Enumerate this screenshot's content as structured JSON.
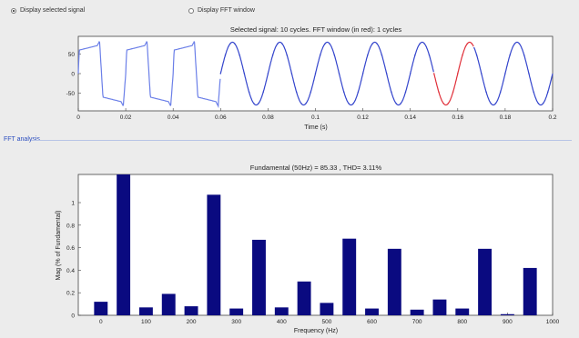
{
  "controls": {
    "radio_selected_signal": "Display selected signal",
    "radio_fft_window": "Display FFT window",
    "selected": "radio_selected_signal"
  },
  "panel": {
    "fft_label": "FFT analysis"
  },
  "signal_plot": {
    "title": "Selected signal: 10 cycles. FFT window (in red): 1 cycles",
    "xlabel": "Time (s)",
    "xticks": [
      "0",
      "0.02",
      "0.04",
      "0.06",
      "0.08",
      "0.1",
      "0.12",
      "0.14",
      "0.16",
      "0.18",
      "0.2"
    ],
    "yticks": [
      "50",
      "0",
      "-50"
    ],
    "xlim": [
      0,
      0.2
    ],
    "ylim": [
      -95,
      95
    ],
    "colors": {
      "signal": "#6b7fe8",
      "sine": "#3344cc",
      "fft_window": "#e0303a"
    }
  },
  "chart_data": [
    {
      "type": "line",
      "title": "Selected signal: 10 cycles. FFT window (in red): 1 cycles",
      "xlabel": "Time (s)",
      "ylabel": "",
      "xlim": [
        0,
        0.2
      ],
      "ylim": [
        -95,
        95
      ],
      "series": [
        {
          "x": [
            0,
            0.001,
            0.003,
            0.006,
            0.0085,
            0.0095,
            0.011,
            0.013,
            0.016,
            0.0185,
            0.0195
          ],
          "values": [
            0,
            60,
            68,
            72,
            80,
            60,
            -60,
            -68,
            -72,
            -80,
            -60
          ]
        }
      ],
      "fft_window": [
        0.15,
        0.1667
      ],
      "grid": false
    },
    {
      "type": "bar",
      "title": "Fundamental (50Hz) = 85.33 , THD= 3.11%",
      "xlabel": "Frequency (Hz)",
      "ylabel": "Mag (% of Fundamental)",
      "xlim": [
        -50,
        1000
      ],
      "ylim": [
        0,
        1.25
      ],
      "x": [
        0,
        50,
        100,
        150,
        200,
        250,
        300,
        350,
        400,
        450,
        500,
        550,
        600,
        650,
        700,
        750,
        800,
        850,
        900,
        950
      ],
      "values": [
        0.12,
        1.25,
        0.07,
        0.19,
        0.08,
        1.07,
        0.06,
        0.67,
        0.07,
        0.3,
        0.11,
        0.68,
        0.06,
        0.59,
        0.05,
        0.14,
        0.06,
        0.59,
        0.01,
        0.42
      ],
      "xticks": [
        "0",
        "100",
        "200",
        "300",
        "400",
        "500",
        "600",
        "700",
        "800",
        "900",
        "1000"
      ],
      "yticks": [
        "0",
        "0.2",
        "0.4",
        "0.6",
        "0.8",
        "1"
      ],
      "bar_color": "#0a0a80",
      "grid": false
    }
  ]
}
